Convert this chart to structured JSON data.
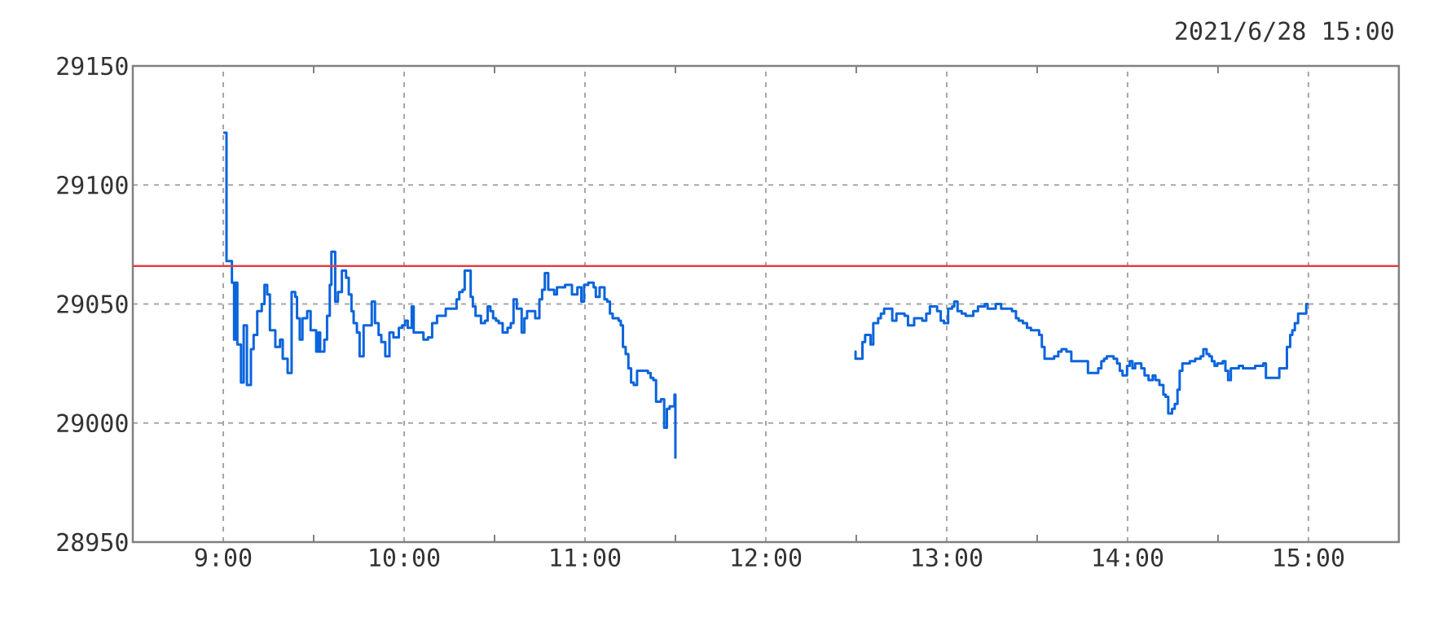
{
  "chart_data": {
    "type": "step",
    "annotations": [
      "2021/6/28 15:00"
    ],
    "x": [
      9.0,
      9.018,
      9.048,
      9.06,
      9.068,
      9.078,
      9.098,
      9.113,
      9.131,
      9.153,
      9.168,
      9.188,
      9.213,
      9.228,
      9.243,
      9.258,
      9.288,
      9.314,
      9.329,
      9.356,
      9.378,
      9.398,
      9.408,
      9.423,
      9.438,
      9.464,
      9.483,
      9.514,
      9.527,
      9.536,
      9.559,
      9.574,
      9.589,
      9.598,
      9.619,
      9.634,
      9.656,
      9.679,
      9.694,
      9.709,
      9.721,
      9.739,
      9.754,
      9.776,
      9.821,
      9.839,
      9.859,
      9.874,
      9.896,
      9.919,
      9.941,
      9.971,
      9.989,
      10.005,
      10.02,
      10.042,
      10.053,
      10.107,
      10.132,
      10.155,
      10.182,
      10.23,
      10.29,
      10.305,
      10.323,
      10.335,
      10.368,
      10.38,
      10.395,
      10.425,
      10.447,
      10.462,
      10.477,
      10.492,
      10.508,
      10.523,
      10.545,
      10.572,
      10.59,
      10.605,
      10.623,
      10.65,
      10.665,
      10.68,
      10.725,
      10.748,
      10.763,
      10.778,
      10.797,
      10.83,
      10.845,
      10.89,
      10.928,
      10.958,
      10.98,
      10.995,
      11.018,
      11.048,
      11.06,
      11.081,
      11.108,
      11.123,
      11.138,
      11.153,
      11.186,
      11.198,
      11.21,
      11.225,
      11.24,
      11.255,
      11.27,
      11.288,
      11.348,
      11.363,
      11.378,
      11.393,
      11.42,
      11.438,
      11.453,
      11.468,
      11.495,
      11.5,
      12.0,
      12.49,
      12.496,
      12.534,
      12.549,
      12.579,
      12.594,
      12.621,
      12.636,
      12.654,
      12.699,
      12.722,
      12.767,
      12.786,
      12.82,
      12.865,
      12.887,
      12.907,
      12.947,
      12.967,
      12.985,
      13.008,
      13.03,
      13.042,
      13.06,
      13.083,
      13.105,
      13.147,
      13.173,
      13.211,
      13.226,
      13.271,
      13.301,
      13.361,
      13.383,
      13.398,
      13.421,
      13.444,
      13.466,
      13.511,
      13.526,
      13.541,
      13.594,
      13.617,
      13.635,
      13.662,
      13.689,
      13.781,
      13.838,
      13.855,
      13.87,
      13.885,
      13.923,
      13.942,
      13.957,
      13.972,
      13.997,
      14.012,
      14.027,
      14.042,
      14.076,
      14.094,
      14.116,
      14.139,
      14.154,
      14.176,
      14.198,
      14.21,
      14.225,
      14.246,
      14.261,
      14.276,
      14.288,
      14.303,
      14.344,
      14.374,
      14.404,
      14.419,
      14.437,
      14.452,
      14.466,
      14.481,
      14.496,
      14.526,
      14.541,
      14.556,
      14.571,
      14.615,
      14.638,
      14.705,
      14.75,
      14.765,
      14.839,
      14.881,
      14.899,
      14.911,
      14.925,
      14.943,
      14.988,
      15.0
    ],
    "values": [
      29122,
      29068,
      29059,
      29035,
      29059,
      29033,
      29017,
      29041,
      29016,
      29031,
      29037,
      29047,
      29050,
      29058,
      29054,
      29039,
      29032,
      29035,
      29027,
      29021,
      29055,
      29053,
      29044,
      29035,
      29044,
      29047,
      29039,
      29030,
      29038,
      29030,
      29035,
      29045,
      29058,
      29072,
      29051,
      29055,
      29064,
      29061,
      29054,
      29047,
      29042,
      29038,
      29028,
      29041,
      29051,
      29042,
      29037,
      29034,
      29028,
      29038,
      29036,
      29040,
      29041,
      29043,
      29040,
      29049,
      29038,
      29035,
      29036,
      29042,
      29045,
      29048,
      29052,
      29055,
      29056,
      29064,
      29053,
      29049,
      29045,
      29042,
      29043,
      29049,
      29047,
      29044,
      29043,
      29042,
      29038,
      29040,
      29042,
      29052,
      29048,
      29038,
      29044,
      29047,
      29044,
      29052,
      29056,
      29063,
      29056,
      29054,
      29057,
      29058,
      29054,
      29057,
      29051,
      29058,
      29059,
      29057,
      29053,
      29057,
      29052,
      29051,
      29046,
      29044,
      29043,
      29041,
      29032,
      29029,
      29023,
      29017,
      29016,
      29022,
      29021,
      29019,
      29018,
      29009,
      29010,
      28998,
      29006,
      29007,
      29012,
      28985,
      null,
      29030,
      29027,
      29034,
      29037,
      29033,
      29042,
      29044,
      29046,
      29048,
      29043,
      29046,
      29045,
      29041,
      29044,
      29043,
      29046,
      29049,
      29047,
      29043,
      29042,
      29048,
      29049,
      29051,
      29047,
      29046,
      29045,
      29047,
      29049,
      29050,
      29048,
      29050,
      29048,
      29047,
      29044,
      29043,
      29042,
      29040,
      29039,
      29037,
      29032,
      29027,
      29028,
      29030,
      29031,
      29030,
      29026,
      29021,
      29023,
      29026,
      29027,
      29028,
      29027,
      29025,
      29022,
      29020,
      29024,
      29026,
      29023,
      29025,
      29023,
      29020,
      29018,
      29020,
      29018,
      29016,
      29012,
      29011,
      29004,
      29006,
      29008,
      29014,
      29022,
      29025,
      29026,
      29027,
      29028,
      29031,
      29029,
      29028,
      29026,
      29024,
      29025,
      29026,
      29022,
      29018,
      29023,
      29024,
      29023,
      29024,
      29025,
      29019,
      29023,
      29032,
      29037,
      29039,
      29042,
      29046,
      29050,
      29050
    ],
    "color": "#0a64dc",
    "xlim": [
      8.5,
      15.5
    ],
    "ylim": [
      28950,
      29150
    ],
    "xticks": [
      {
        "value": 9,
        "label": "9:00"
      },
      {
        "value": 9.5,
        "label": null
      },
      {
        "value": 10,
        "label": "10:00"
      },
      {
        "value": 10.5,
        "label": null
      },
      {
        "value": 11,
        "label": "11:00"
      },
      {
        "value": 11.5,
        "label": null
      },
      {
        "value": 12,
        "label": "12:00"
      },
      {
        "value": 12.5,
        "label": null
      },
      {
        "value": 13,
        "label": "13:00"
      },
      {
        "value": 13.5,
        "label": null
      },
      {
        "value": 14,
        "label": "14:00"
      },
      {
        "value": 14.5,
        "label": null
      },
      {
        "value": 15,
        "label": "15:00"
      }
    ],
    "yticks": [
      28950,
      29000,
      29050,
      29100,
      29150
    ],
    "grid": true,
    "ref_lines": [
      {
        "axis": "y",
        "value": 29066,
        "color": "#e8383d"
      }
    ]
  }
}
